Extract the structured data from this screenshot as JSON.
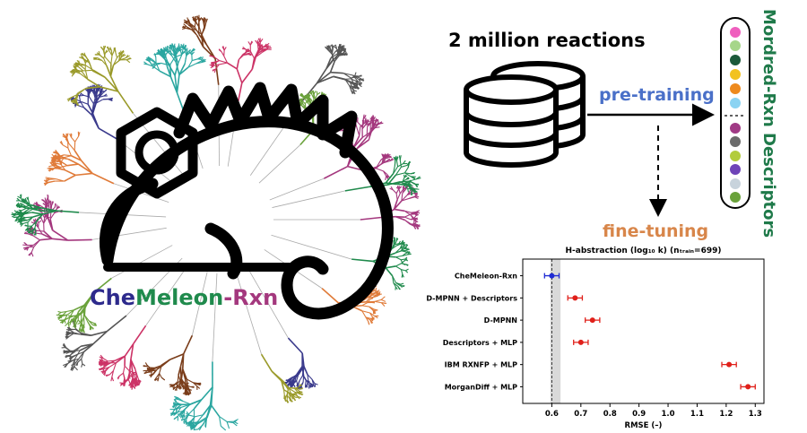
{
  "logo": {
    "part1": "Che",
    "part2": "Meleon",
    "part3": "-Rxn",
    "colors": {
      "part1": "#2d2a8c",
      "part2": "#1f8a4c",
      "part3": "#a4387e"
    }
  },
  "workflow": {
    "headline": "2 million reactions",
    "pretraining_label": "pre-training",
    "finetuning_label": "fine-tuning",
    "descriptor_label": "Mordred-Rxn Descriptors",
    "colors": {
      "pretraining": "#4a70c8",
      "finetuning": "#d8864a",
      "descriptor": "#1f7a4a"
    },
    "descriptor_dots": [
      "#ef5fbe",
      "#a6d68a",
      "#1c5a3a",
      "#f2c21f",
      "#ee8a1e",
      "#8bd3f2",
      "#a03a85",
      "#6b6b6b",
      "#b2cc3c",
      "#6e44b8",
      "#c8d3dc",
      "#6aa23b"
    ]
  },
  "chart_data": {
    "type": "scatter",
    "title": "H-abstraction (log₁₀ k)  (nₜᵣₐᵢₙ=699)",
    "xlabel": "RMSE (–)",
    "ylabel": "",
    "xlim": [
      0.5,
      1.33
    ],
    "xticks": [
      0.6,
      0.7,
      0.8,
      0.9,
      1.0,
      1.1,
      1.2,
      1.3
    ],
    "xtick_labels": [
      "0.6",
      "0.7",
      "0.8",
      "0.9",
      "1.0",
      "1.1",
      "1.2",
      "1.3"
    ],
    "reference_line": 0.6,
    "reference_band": [
      0.595,
      0.63
    ],
    "categories": [
      "CheMeleon-Rxn",
      "D-MPNN + Descriptors",
      "D-MPNN",
      "Descriptors + MLP",
      "IBM RXNFP + MLP",
      "MorganDiff + MLP"
    ],
    "values": [
      0.6,
      0.68,
      0.74,
      0.7,
      1.21,
      1.275
    ],
    "errors": [
      0.025,
      0.025,
      0.025,
      0.025,
      0.025,
      0.025
    ],
    "colors": [
      "#1f2bd4",
      "#e0201a",
      "#e0201a",
      "#e0201a",
      "#e0201a",
      "#e0201a"
    ]
  }
}
